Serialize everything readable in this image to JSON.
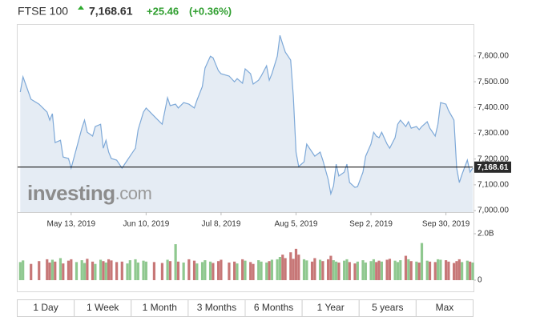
{
  "header": {
    "symbol": "FTSE 100",
    "price": "7,168.61",
    "change": "+25.46",
    "change_pct": "(+0.36%)"
  },
  "chart_data": {
    "type": "area",
    "x": [
      "2019-04-24",
      "2019-04-25",
      "2019-04-28",
      "2019-05-01",
      "2019-05-04",
      "2019-05-05",
      "2019-05-06",
      "2019-05-07",
      "2019-05-09",
      "2019-05-10",
      "2019-05-12",
      "2019-05-13",
      "2019-05-15",
      "2019-05-17",
      "2019-05-18",
      "2019-05-19",
      "2019-05-21",
      "2019-05-22",
      "2019-05-24",
      "2019-05-25",
      "2019-05-26",
      "2019-05-27",
      "2019-05-28",
      "2019-05-30",
      "2019-06-01",
      "2019-06-03",
      "2019-06-04",
      "2019-06-06",
      "2019-06-07",
      "2019-06-09",
      "2019-06-10",
      "2019-06-13",
      "2019-06-16",
      "2019-06-18",
      "2019-06-19",
      "2019-06-21",
      "2019-06-22",
      "2019-06-24",
      "2019-06-26",
      "2019-06-28",
      "2019-06-29",
      "2019-07-01",
      "2019-07-02",
      "2019-07-04",
      "2019-07-05",
      "2019-07-07",
      "2019-07-08",
      "2019-07-11",
      "2019-07-13",
      "2019-07-14",
      "2019-07-16",
      "2019-07-17",
      "2019-07-19",
      "2019-07-20",
      "2019-07-22",
      "2019-07-23",
      "2019-07-25",
      "2019-07-26",
      "2019-07-27",
      "2019-07-29",
      "2019-07-30",
      "2019-07-31",
      "2019-08-01",
      "2019-08-03",
      "2019-08-04",
      "2019-08-05",
      "2019-08-06",
      "2019-08-08",
      "2019-08-09",
      "2019-08-11",
      "2019-08-12",
      "2019-08-14",
      "2019-08-15",
      "2019-08-17",
      "2019-08-18",
      "2019-08-19",
      "2019-08-20",
      "2019-08-21",
      "2019-08-23",
      "2019-08-24",
      "2019-08-25",
      "2019-08-27",
      "2019-08-28",
      "2019-08-30",
      "2019-08-31",
      "2019-09-02",
      "2019-09-03",
      "2019-09-04",
      "2019-09-05",
      "2019-09-06",
      "2019-09-08",
      "2019-09-09",
      "2019-09-11",
      "2019-09-12",
      "2019-09-13",
      "2019-09-15",
      "2019-09-16",
      "2019-09-17",
      "2019-09-19",
      "2019-09-20",
      "2019-09-21",
      "2019-09-23",
      "2019-09-24",
      "2019-09-26",
      "2019-09-27",
      "2019-09-28",
      "2019-09-30",
      "2019-10-01",
      "2019-10-03",
      "2019-10-04",
      "2019-10-05",
      "2019-10-06",
      "2019-10-08",
      "2019-10-09",
      "2019-10-10"
    ],
    "series": [
      {
        "color": "#7ea9d8",
        "fill": "#e5ecf4",
        "values": [
          7460,
          7519,
          7432,
          7413,
          7382,
          7351,
          7376,
          7264,
          7273,
          7208,
          7202,
          7165,
          7242,
          7320,
          7351,
          7304,
          7289,
          7326,
          7335,
          7242,
          7273,
          7227,
          7202,
          7196,
          7165,
          7196,
          7211,
          7242,
          7314,
          7382,
          7398,
          7366,
          7335,
          7438,
          7407,
          7413,
          7398,
          7419,
          7413,
          7398,
          7429,
          7481,
          7553,
          7599,
          7593,
          7543,
          7531,
          7522,
          7500,
          7512,
          7494,
          7550,
          7531,
          7491,
          7506,
          7522,
          7562,
          7506,
          7531,
          7599,
          7680,
          7646,
          7615,
          7584,
          7444,
          7227,
          7171,
          7189,
          7258,
          7227,
          7211,
          7227,
          7196,
          7121,
          7065,
          7096,
          7180,
          7134,
          7149,
          7180,
          7109,
          7090,
          7093,
          7149,
          7211,
          7258,
          7304,
          7289,
          7283,
          7304,
          7258,
          7242,
          7283,
          7335,
          7351,
          7326,
          7345,
          7320,
          7326,
          7314,
          7326,
          7345,
          7320,
          7289,
          7335,
          7419,
          7413,
          7388,
          7351,
          7165,
          7109,
          7140,
          7196,
          7149,
          7165
        ]
      }
    ],
    "xlim": [
      "2019-04-23",
      "2019-10-10"
    ],
    "xticks": [
      {
        "value": "2019-05-13",
        "label": "May 13, 2019"
      },
      {
        "value": "2019-06-10",
        "label": "Jun 10, 2019"
      },
      {
        "value": "2019-07-08",
        "label": "Jul 8, 2019"
      },
      {
        "value": "2019-08-05",
        "label": "Aug 5, 2019"
      },
      {
        "value": "2019-09-02",
        "label": "Sep 2, 2019"
      },
      {
        "value": "2019-09-30",
        "label": "Sep 30, 2019"
      }
    ],
    "ylim": [
      6994,
      7724
    ],
    "yticks": [
      {
        "value": 7000,
        "label": "7,000.00"
      },
      {
        "value": 7100,
        "label": "7,100.00"
      },
      {
        "value": 7200,
        "label": "7,200.00"
      },
      {
        "value": 7300,
        "label": "7,300.00"
      },
      {
        "value": 7400,
        "label": "7,400.00"
      },
      {
        "value": 7500,
        "label": "7,500.00"
      },
      {
        "value": 7600,
        "label": "7,600.00"
      }
    ],
    "reference_line": {
      "value": 7168.61,
      "label": "7,168.61",
      "color": "#000000"
    },
    "watermark": {
      "brand": "investing",
      "suffix": ".com"
    },
    "volume": {
      "up_color": "#8fc88f",
      "down_color": "#c77777",
      "ylim": [
        0,
        2
      ],
      "yticks": [
        0,
        {
          "value": 2,
          "label": "2.0B"
        }
      ],
      "values": [
        0.78,
        0.85,
        0.7,
        0.82,
        0.9,
        0.76,
        0.88,
        0.8,
        0.95,
        0.72,
        0.84,
        0.9,
        0.78,
        0.86,
        0.74,
        0.92,
        0.8,
        0.7,
        0.88,
        0.82,
        0.76,
        0.9,
        0.85,
        0.78,
        0.8,
        0.72,
        0.86,
        0.9,
        0.76,
        0.84,
        0.8,
        0.78,
        0.74,
        0.88,
        0.82,
        1.55,
        0.8,
        0.76,
        0.9,
        0.84,
        0.72,
        0.78,
        0.86,
        0.8,
        0.74,
        0.82,
        0.88,
        0.76,
        0.8,
        0.72,
        0.9,
        0.84,
        0.78,
        0.7,
        0.86,
        0.8,
        0.76,
        0.82,
        0.88,
        0.9,
        1.0,
        1.1,
        0.95,
        1.2,
        0.92,
        1.35,
        1.1,
        0.9,
        0.85,
        0.8,
        0.95,
        0.88,
        0.82,
        0.9,
        1.05,
        0.86,
        0.8,
        0.76,
        0.84,
        0.9,
        0.78,
        0.72,
        0.8,
        0.86,
        0.76,
        0.82,
        0.9,
        0.78,
        0.84,
        0.8,
        0.88,
        0.92,
        0.84,
        0.78,
        0.86,
        1.05,
        0.9,
        0.82,
        0.8,
        0.76,
        1.6,
        0.84,
        0.8,
        0.78,
        0.9,
        0.88,
        0.86,
        0.8,
        0.74,
        0.82,
        0.9,
        0.78,
        0.84,
        0.8,
        0.76
      ]
    }
  },
  "range_buttons": [
    "1 Day",
    "1 Week",
    "1 Month",
    "3 Months",
    "6 Months",
    "1 Year",
    "5 years",
    "Max"
  ]
}
